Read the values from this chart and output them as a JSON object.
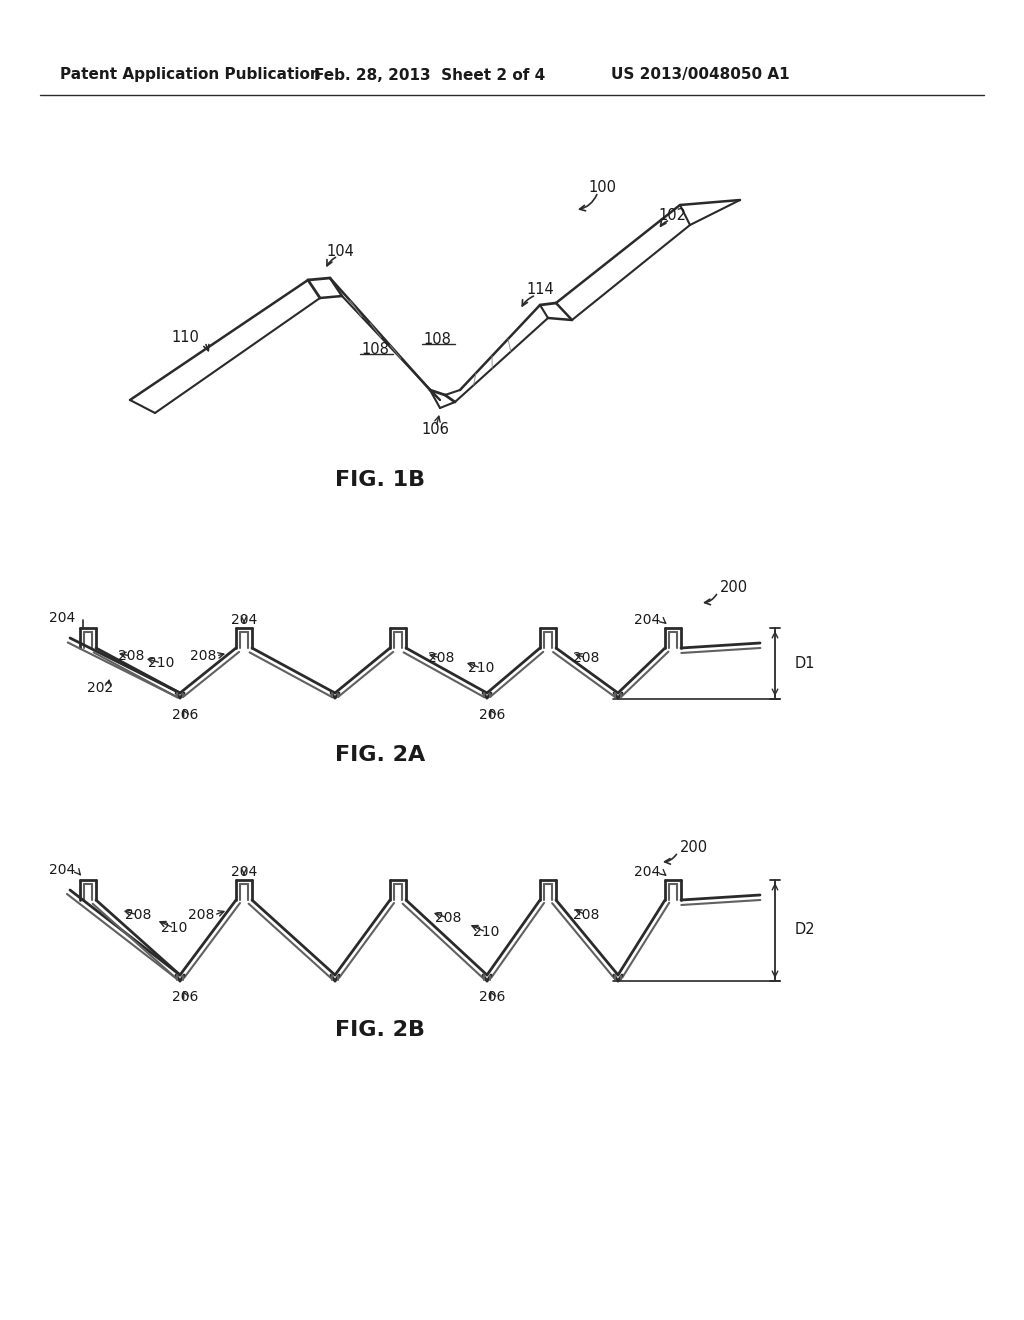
{
  "bg_color": "#ffffff",
  "text_color": "#1a1a1a",
  "line_color": "#2a2a2a",
  "header_left": "Patent Application Publication",
  "header_center": "Feb. 28, 2013  Sheet 2 of 4",
  "header_right": "US 2013/0048050 A1",
  "fig1b_label": "FIG. 1B",
  "fig2a_label": "FIG. 2A",
  "fig2b_label": "FIG. 2B"
}
